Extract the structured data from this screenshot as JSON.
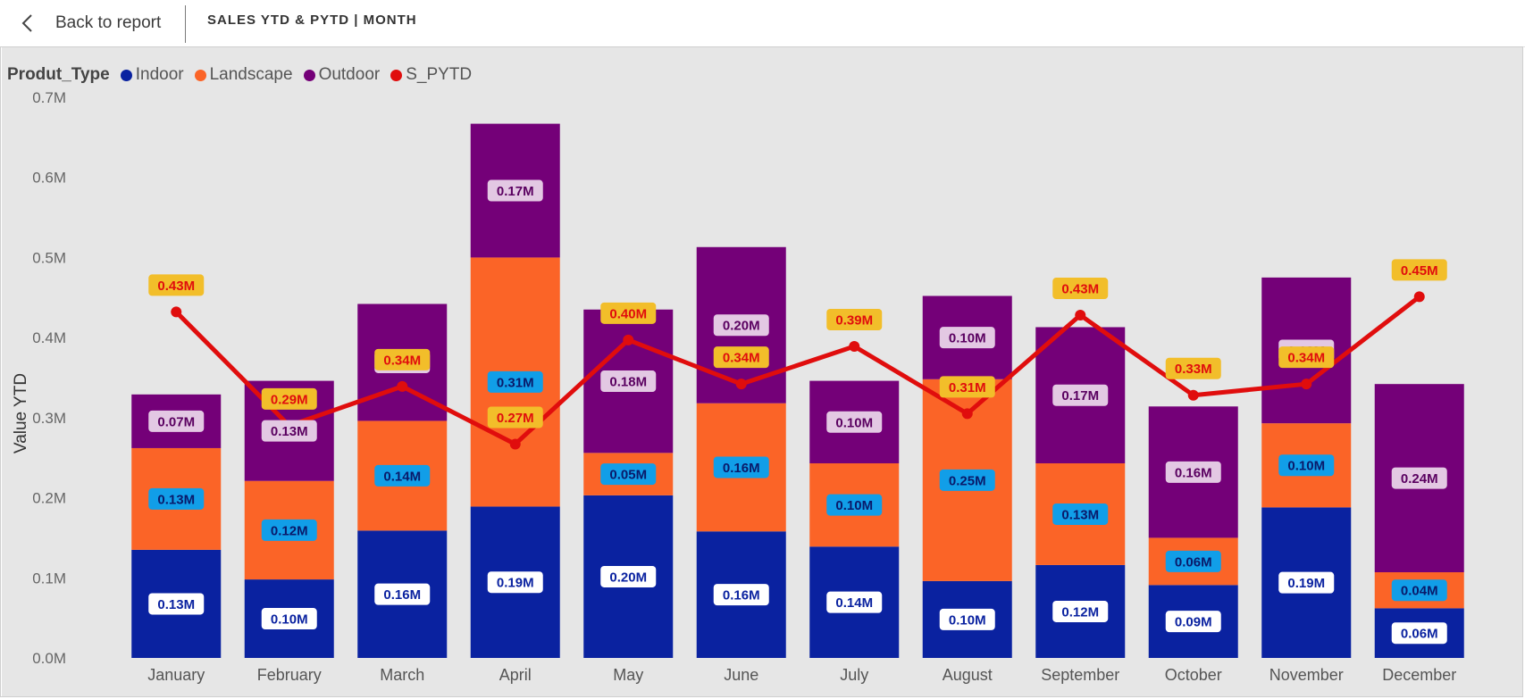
{
  "header": {
    "back_label": "Back to report",
    "title": "SALES YTD & PYTD | MONTH"
  },
  "legend": {
    "title": "Produt_Type",
    "items": [
      {
        "label": "Indoor",
        "color": "#0a22a0"
      },
      {
        "label": "Landscape",
        "color": "#fb6427"
      },
      {
        "label": "Outdoor",
        "color": "#740078"
      },
      {
        "label": "S_PYTD",
        "color": "#e00d0d"
      }
    ]
  },
  "chart_data": {
    "type": "bar",
    "stacked": true,
    "categories": [
      "January",
      "February",
      "March",
      "April",
      "May",
      "June",
      "July",
      "August",
      "September",
      "October",
      "November",
      "December"
    ],
    "ylabel": "Value YTD",
    "xlabel": "",
    "ylim": [
      0,
      0.7
    ],
    "yticks": [
      "0.0M",
      "0.1M",
      "0.2M",
      "0.3M",
      "0.4M",
      "0.5M",
      "0.6M",
      "0.7M"
    ],
    "series": [
      {
        "name": "Indoor",
        "color": "#0a22a0",
        "values": [
          0.135,
          0.098,
          0.159,
          0.189,
          0.203,
          0.158,
          0.139,
          0.096,
          0.116,
          0.091,
          0.188,
          0.062
        ],
        "labels": [
          "0.13M",
          "0.10M",
          "0.16M",
          "0.19M",
          "0.20M",
          "0.16M",
          "0.14M",
          "0.10M",
          "0.12M",
          "0.09M",
          "0.19M",
          "0.06M"
        ]
      },
      {
        "name": "Landscape",
        "color": "#fb6427",
        "values": [
          0.127,
          0.123,
          0.137,
          0.311,
          0.053,
          0.16,
          0.104,
          0.252,
          0.127,
          0.059,
          0.105,
          0.045
        ],
        "labels": [
          "0.13M",
          "0.12M",
          "0.14M",
          "0.31M",
          "0.05M",
          "0.16M",
          "0.10M",
          "0.25M",
          "0.13M",
          "0.06M",
          "0.10M",
          "0.04M"
        ]
      },
      {
        "name": "Outdoor",
        "color": "#740078",
        "values": [
          0.067,
          0.125,
          0.146,
          0.167,
          0.179,
          0.195,
          0.103,
          0.104,
          0.17,
          0.164,
          0.182,
          0.235
        ],
        "labels": [
          "0.07M",
          "0.13M",
          "0.15M",
          "0.17M",
          "0.18M",
          "0.20M",
          "0.10M",
          "0.10M",
          "0.17M",
          "0.16M",
          "0.18M",
          "0.24M"
        ]
      }
    ],
    "line": {
      "name": "S_PYTD",
      "color": "#e00d0d",
      "values": [
        0.432,
        0.29,
        0.339,
        0.267,
        0.397,
        0.342,
        0.389,
        0.305,
        0.428,
        0.328,
        0.342,
        0.451
      ],
      "labels": [
        "0.43M",
        "0.29M",
        "0.34M",
        "0.27M",
        "0.40M",
        "0.34M",
        "0.39M",
        "0.31M",
        "0.43M",
        "0.33M",
        "0.34M",
        "0.45M"
      ]
    },
    "label_colors": {
      "Indoor": {
        "bg": "#ffffff",
        "fg": "#0a22a0"
      },
      "Landscape": {
        "bg": "#119ee8",
        "fg": "#0a1a6a"
      },
      "Outdoor": {
        "bg": "#e3c8e3",
        "fg": "#5a0060"
      },
      "S_PYTD": {
        "bg": "#f2be2a",
        "fg": "#e00d0d"
      }
    }
  }
}
